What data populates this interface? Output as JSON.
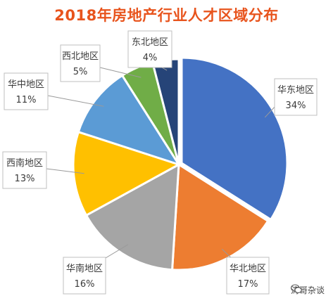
{
  "chart_data": {
    "type": "pie",
    "title": "2018年房地产行业人才区域分布",
    "start_angle_deg": 0,
    "direction": "clockwise",
    "slices": [
      {
        "name": "华东地区",
        "value": 34,
        "label": "34%",
        "color": "#4472c4"
      },
      {
        "name": "华北地区",
        "value": 17,
        "label": "17%",
        "color": "#ed7d31"
      },
      {
        "name": "华南地区",
        "value": 16,
        "label": "16%",
        "color": "#a5a5a5"
      },
      {
        "name": "西南地区",
        "value": 13,
        "label": "13%",
        "color": "#ffc000"
      },
      {
        "name": "华中地区",
        "value": 11,
        "label": "11%",
        "color": "#5b9bd5"
      },
      {
        "name": "西北地区",
        "value": 5,
        "label": "5%",
        "color": "#70ad47"
      },
      {
        "name": "东北地区",
        "value": 4,
        "label": "4%",
        "color": "#264478"
      }
    ]
  },
  "watermark": {
    "text": "涛哥杂谈",
    "icon": "wechat-icon"
  }
}
